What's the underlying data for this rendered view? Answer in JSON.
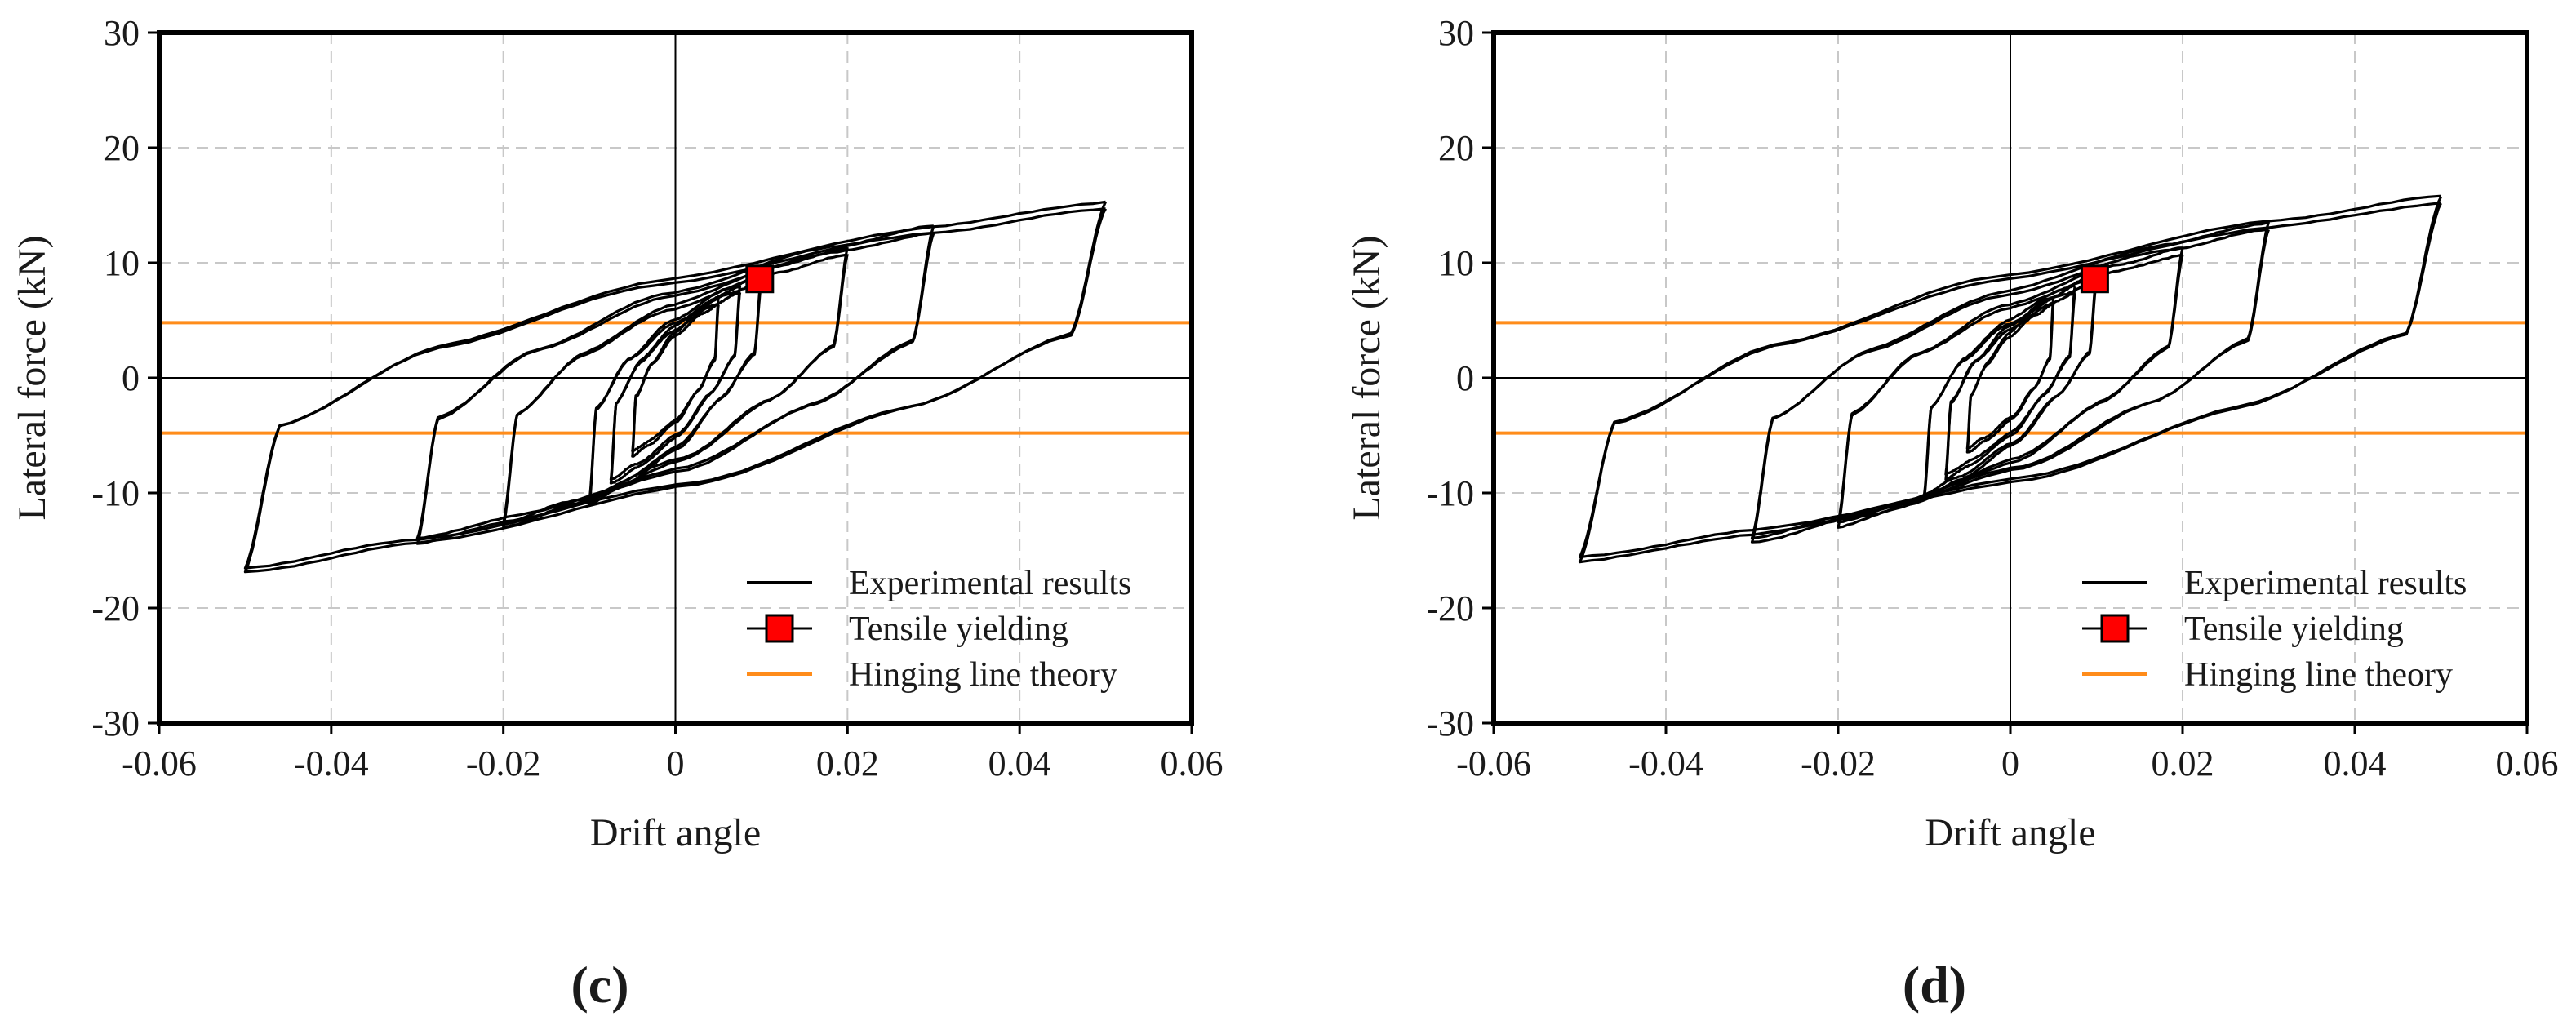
{
  "panels": [
    {
      "caption": "(c)",
      "chart_data": {
        "type": "line",
        "title": "",
        "xlabel": "Drift angle",
        "ylabel": "Lateral force (kN)",
        "xlim": [
          -0.06,
          0.06
        ],
        "ylim": [
          -30,
          30
        ],
        "xticks": [
          -0.06,
          -0.04,
          -0.02,
          0,
          0.02,
          0.04,
          0.06
        ],
        "yticks": [
          -30,
          -20,
          -10,
          0,
          10,
          20,
          30
        ],
        "xtick_labels": [
          "-0.06",
          "-0.04",
          "-0.02",
          "0",
          "0.02",
          "0.04",
          "0.06"
        ],
        "ytick_labels": [
          "-30",
          "-20",
          "-10",
          "0",
          "10",
          "20",
          "30"
        ],
        "grid": true,
        "legend_position": "bottom-right",
        "legend": [
          "Experimental results",
          "Tensile yielding",
          "Hinging line theory"
        ],
        "colors": {
          "experimental": "#000000",
          "yield_marker": "#ff0000",
          "hinging": "#ff8c1a"
        },
        "hinging_line_values": [
          4.8,
          -4.8
        ],
        "tensile_yielding_point": [
          0.0098,
          8.6
        ],
        "cycles": [
          {
            "amp": 0.005,
            "pmax": 7.0,
            "nmin": -6.8
          },
          {
            "amp": 0.0075,
            "pmax": 8.0,
            "nmin": -9.2
          },
          {
            "amp": 0.01,
            "pmax": 9.0,
            "nmin": -11.0
          },
          {
            "amp": 0.02,
            "pmax": 11.3,
            "nmin": -13.0
          },
          {
            "amp": 0.03,
            "pmax": 13.2,
            "nmin": -14.4
          },
          {
            "amp": 0.05,
            "pmax": 15.3,
            "nmin": -16.9
          }
        ]
      }
    },
    {
      "caption": "(d)",
      "chart_data": {
        "type": "line",
        "title": "",
        "xlabel": "Drift angle",
        "ylabel": "Lateral force (kN)",
        "xlim": [
          -0.06,
          0.06
        ],
        "ylim": [
          -30,
          30
        ],
        "xticks": [
          -0.06,
          -0.04,
          -0.02,
          0,
          0.02,
          0.04,
          0.06
        ],
        "yticks": [
          -30,
          -20,
          -10,
          0,
          10,
          20,
          30
        ],
        "xtick_labels": [
          "-0.06",
          "-0.04",
          "-0.02",
          "0",
          "0.02",
          "0.04",
          "0.06"
        ],
        "ytick_labels": [
          "-30",
          "-20",
          "-10",
          "0",
          "10",
          "20",
          "30"
        ],
        "grid": true,
        "legend_position": "bottom-right",
        "legend": [
          "Experimental results",
          "Tensile yielding",
          "Hinging line theory"
        ],
        "colors": {
          "experimental": "#000000",
          "yield_marker": "#ff0000",
          "hinging": "#ff8c1a"
        },
        "hinging_line_values": [
          4.8,
          -4.8
        ],
        "tensile_yielding_point": [
          0.0098,
          8.6
        ],
        "cycles": [
          {
            "amp": 0.005,
            "pmax": 7.0,
            "nmin": -6.5
          },
          {
            "amp": 0.0075,
            "pmax": 8.0,
            "nmin": -8.8
          },
          {
            "amp": 0.01,
            "pmax": 9.0,
            "nmin": -10.5
          },
          {
            "amp": 0.02,
            "pmax": 11.3,
            "nmin": -13.0
          },
          {
            "amp": 0.03,
            "pmax": 13.5,
            "nmin": -14.3
          },
          {
            "amp": 0.05,
            "pmax": 15.8,
            "nmin": -16.0
          }
        ]
      }
    }
  ]
}
